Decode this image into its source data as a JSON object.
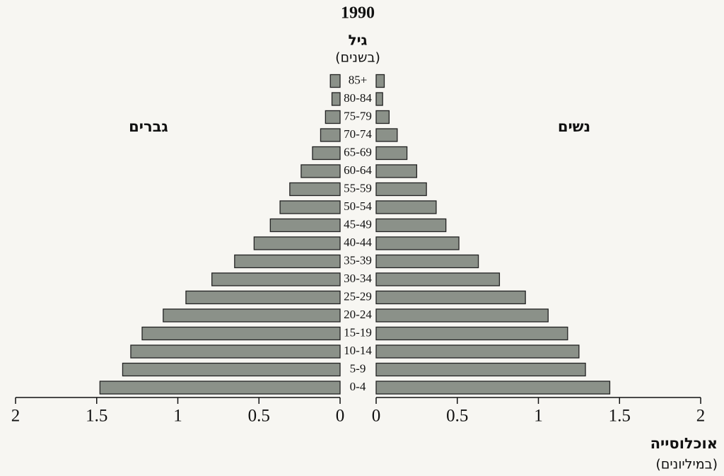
{
  "chart_data": {
    "type": "pyramid",
    "title": "1990",
    "y_label": "גיל",
    "y_label_sub": "(בשנים)",
    "x_label": "אוכלוסייה",
    "x_label_sub": "(במיליונים)",
    "categories": [
      "0-4",
      "5-9",
      "10-14",
      "15-19",
      "20-24",
      "25-29",
      "30-34",
      "35-39",
      "40-44",
      "45-49",
      "50-54",
      "55-59",
      "60-64",
      "65-69",
      "70-74",
      "75-79",
      "80-84",
      "85+"
    ],
    "series": [
      {
        "name": "גברים",
        "color": "#8b9189",
        "side": "left",
        "values": [
          1.48,
          1.34,
          1.29,
          1.22,
          1.09,
          0.95,
          0.79,
          0.65,
          0.53,
          0.43,
          0.37,
          0.31,
          0.24,
          0.17,
          0.12,
          0.09,
          0.05,
          0.06
        ]
      },
      {
        "name": "נשים",
        "color": "#8b9189",
        "side": "right",
        "values": [
          1.44,
          1.29,
          1.25,
          1.18,
          1.06,
          0.92,
          0.76,
          0.63,
          0.51,
          0.43,
          0.37,
          0.31,
          0.25,
          0.19,
          0.13,
          0.08,
          0.04,
          0.05
        ]
      }
    ],
    "xlim": [
      0,
      2
    ],
    "xticks": [
      0,
      0.5,
      1,
      1.5,
      2
    ]
  }
}
